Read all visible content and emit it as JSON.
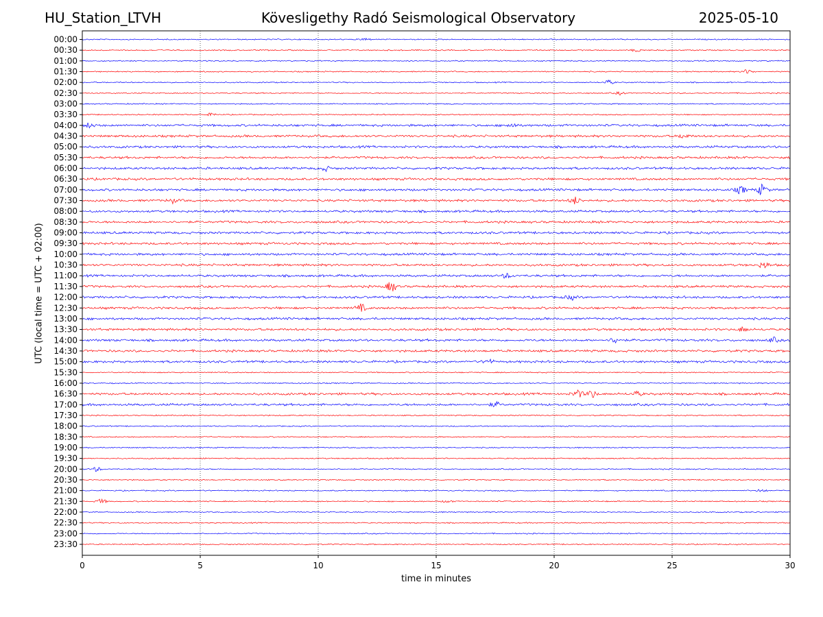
{
  "header": {
    "station": "HU_Station_LTVH",
    "title": "Kövesligethy Radó Seismological Observatory",
    "date": "2025-05-10"
  },
  "chart_data": {
    "type": "line",
    "title": "Kövesligethy Radó Seismological Observatory",
    "xlabel": "time in minutes",
    "ylabel": "UTC (local time = UTC + 02:00)",
    "xlim": [
      0,
      30
    ],
    "x_ticks": [
      0,
      5,
      10,
      15,
      20,
      25,
      30
    ],
    "x_tick_labels": [
      "0",
      "5",
      "10",
      "15",
      "20",
      "25",
      "30"
    ],
    "grid": "vertical dotted lines at x ticks",
    "row_labels": [
      "00:00",
      "00:30",
      "01:00",
      "01:30",
      "02:00",
      "02:30",
      "03:00",
      "03:30",
      "04:00",
      "04:30",
      "05:00",
      "05:30",
      "06:00",
      "06:30",
      "07:00",
      "07:30",
      "08:00",
      "08:30",
      "09:00",
      "09:30",
      "10:00",
      "10:30",
      "11:00",
      "11:30",
      "12:00",
      "12:30",
      "13:00",
      "13:30",
      "14:00",
      "14:30",
      "15:00",
      "15:30",
      "16:00",
      "16:30",
      "17:00",
      "17:30",
      "18:00",
      "18:30",
      "19:00",
      "19:30",
      "20:00",
      "20:30",
      "21:00",
      "21:30",
      "22:00",
      "22:30",
      "23:00",
      "23:30"
    ],
    "colors": [
      "#0000ff",
      "#ff0000"
    ],
    "row_amplitude": [
      1,
      1,
      1,
      1,
      1,
      1,
      1,
      1,
      2,
      2,
      2,
      2,
      2,
      2,
      2,
      2,
      2,
      2,
      2,
      2,
      2,
      2,
      2,
      2,
      2,
      2,
      2,
      2,
      2,
      2,
      2,
      1,
      1,
      2,
      2,
      1,
      1,
      1,
      1,
      1,
      1,
      1,
      1,
      1,
      1,
      1,
      1,
      1
    ],
    "events": [
      {
        "row": "00:00",
        "x": 12.0,
        "amp": 2
      },
      {
        "row": "00:30",
        "x": 23.5,
        "amp": 2
      },
      {
        "row": "01:30",
        "x": 28.2,
        "amp": 3
      },
      {
        "row": "02:00",
        "x": 22.3,
        "amp": 3
      },
      {
        "row": "02:30",
        "x": 22.8,
        "amp": 2
      },
      {
        "row": "03:30",
        "x": 5.5,
        "amp": 2
      },
      {
        "row": "04:00",
        "x": 0.3,
        "amp": 3
      },
      {
        "row": "04:00",
        "x": 18.2,
        "amp": 3
      },
      {
        "row": "04:30",
        "x": 25.5,
        "amp": 3
      },
      {
        "row": "06:00",
        "x": 10.3,
        "amp": 3
      },
      {
        "row": "07:00",
        "x": 27.9,
        "amp": 5
      },
      {
        "row": "07:00",
        "x": 28.8,
        "amp": 7
      },
      {
        "row": "07:30",
        "x": 3.8,
        "amp": 3
      },
      {
        "row": "07:30",
        "x": 20.9,
        "amp": 5
      },
      {
        "row": "10:30",
        "x": 28.9,
        "amp": 4
      },
      {
        "row": "11:00",
        "x": 18.0,
        "amp": 3
      },
      {
        "row": "11:30",
        "x": 13.1,
        "amp": 7
      },
      {
        "row": "12:00",
        "x": 20.7,
        "amp": 3
      },
      {
        "row": "12:30",
        "x": 11.8,
        "amp": 5
      },
      {
        "row": "13:30",
        "x": 28.0,
        "amp": 3
      },
      {
        "row": "14:00",
        "x": 22.6,
        "amp": 4
      },
      {
        "row": "14:00",
        "x": 29.3,
        "amp": 3
      },
      {
        "row": "15:00",
        "x": 17.2,
        "amp": 3
      },
      {
        "row": "16:30",
        "x": 21.0,
        "amp": 5
      },
      {
        "row": "16:30",
        "x": 21.6,
        "amp": 5
      },
      {
        "row": "16:30",
        "x": 23.5,
        "amp": 3
      },
      {
        "row": "17:00",
        "x": 17.5,
        "amp": 3
      },
      {
        "row": "20:00",
        "x": 0.6,
        "amp": 3
      },
      {
        "row": "21:00",
        "x": 28.8,
        "amp": 2
      },
      {
        "row": "21:30",
        "x": 0.8,
        "amp": 3
      },
      {
        "row": "21:30",
        "x": 15.5,
        "amp": 2
      }
    ]
  }
}
